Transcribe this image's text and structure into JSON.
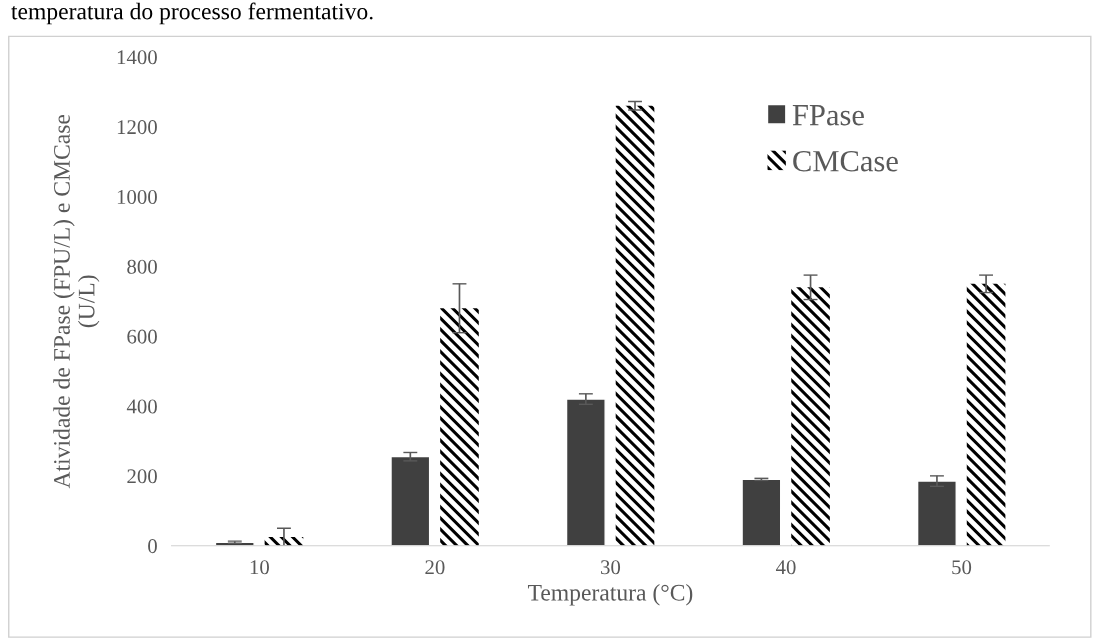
{
  "chart_data": {
    "type": "bar",
    "xlabel": "Temperatura (°C)",
    "ylabel": "Atividade de FPase (FPU/L) e CMCase\n(U/L)",
    "categories": [
      "10",
      "20",
      "30",
      "40",
      "50"
    ],
    "series": [
      {
        "name": "FPase",
        "color": "#404040",
        "values": [
          10,
          255,
          420,
          190,
          185
        ],
        "errors": [
          3,
          12,
          15,
          3,
          15
        ]
      },
      {
        "name": "CMCase",
        "color": "#000000",
        "values": [
          25,
          680,
          1260,
          740,
          750
        ],
        "errors": [
          25,
          70,
          12,
          35,
          25
        ]
      }
    ],
    "ylim": [
      0,
      1400
    ],
    "yticks": [
      0,
      200,
      400,
      600,
      800,
      1000,
      1200,
      1400
    ],
    "grid": false,
    "legend": "top right",
    "annotations": [
      "temperatura do processo fermentativo."
    ]
  }
}
